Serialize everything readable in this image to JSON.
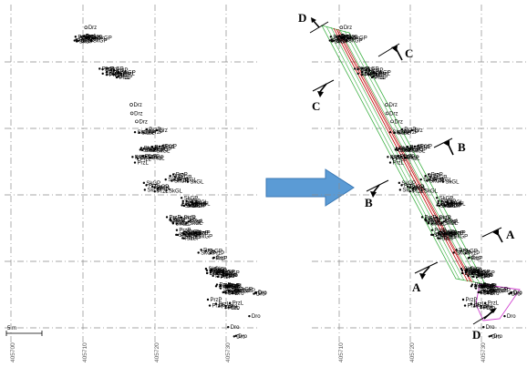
{
  "panels": {
    "left": {
      "name": "survey-points-map"
    },
    "right": {
      "name": "survey-points-map-with-sections"
    }
  },
  "x_tick_labels": [
    "405700",
    "405710",
    "405720",
    "405730"
  ],
  "scale_bar_label": "5 m",
  "section_labels": [
    "D",
    "C",
    "C",
    "B",
    "B",
    "A",
    "A",
    "D"
  ],
  "point_codes": [
    "Drz",
    "PrzP",
    "SkGP",
    "PrzL",
    "SkGL",
    "Dro"
  ],
  "colors": {
    "arrow": "#5b9bd5",
    "section_red": "#c00000",
    "section_green": "#3cb043",
    "section_magenta": "#d040d0",
    "grid": "#8a8a8a"
  }
}
